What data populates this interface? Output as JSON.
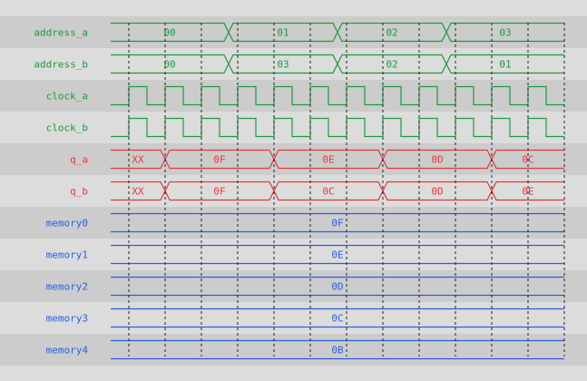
{
  "colors": {
    "row_dark": "#cccccc",
    "row_light": "#dcdcdc",
    "green": "#1f9a3c",
    "red": "#e03a3a",
    "blue": "#2c5de0",
    "grid": "#222222"
  },
  "time": {
    "start_cycle": -0.5,
    "end_cycle": 12,
    "grid_cycles": [
      0,
      1,
      2,
      3,
      4,
      5,
      6,
      7,
      8,
      9,
      10,
      11,
      12
    ]
  },
  "signals": [
    {
      "name": "address_a",
      "type": "bus",
      "color": "green",
      "values": [
        "00",
        "01",
        "02",
        "03"
      ],
      "changes_at": [
        2.75,
        5.75,
        8.75
      ]
    },
    {
      "name": "address_b",
      "type": "bus",
      "color": "green",
      "values": [
        "00",
        "03",
        "02",
        "01"
      ],
      "changes_at": [
        2.75,
        5.75,
        8.75
      ]
    },
    {
      "name": "clock_a",
      "type": "clock",
      "color": "green",
      "first_rise": 0,
      "period": 1,
      "duty": 0.5
    },
    {
      "name": "clock_b",
      "type": "clock",
      "color": "green",
      "first_rise": 0,
      "period": 1,
      "duty": 0.5
    },
    {
      "name": "q_a",
      "type": "bus",
      "color": "red",
      "values": [
        "XX",
        "0F",
        "0E",
        "0D",
        "0C"
      ],
      "changes_at": [
        1,
        4,
        7,
        10
      ]
    },
    {
      "name": "q_b",
      "type": "bus",
      "color": "red",
      "values": [
        "XX",
        "0F",
        "0C",
        "0D",
        "0E"
      ],
      "changes_at": [
        1,
        4,
        7,
        10
      ]
    },
    {
      "name": "memory0",
      "type": "bus",
      "color": "blue",
      "values": [
        "0F"
      ],
      "changes_at": []
    },
    {
      "name": "memory1",
      "type": "bus",
      "color": "blue",
      "values": [
        "0E"
      ],
      "changes_at": []
    },
    {
      "name": "memory2",
      "type": "bus",
      "color": "blue",
      "values": [
        "0D"
      ],
      "changes_at": []
    },
    {
      "name": "memory3",
      "type": "bus",
      "color": "blue",
      "values": [
        "0C"
      ],
      "changes_at": []
    },
    {
      "name": "memory4",
      "type": "bus",
      "color": "blue",
      "values": [
        "0B"
      ],
      "changes_at": []
    }
  ]
}
